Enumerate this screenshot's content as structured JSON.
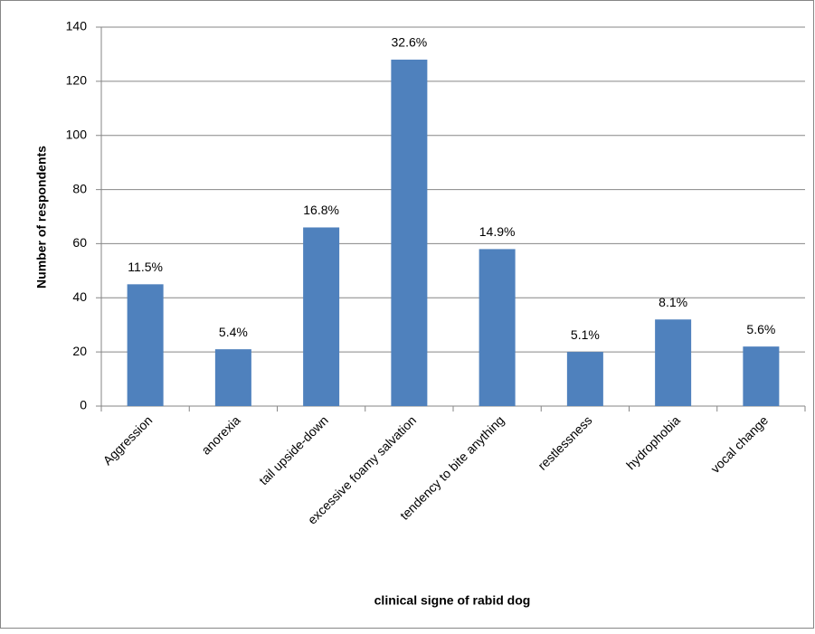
{
  "chart_data": {
    "type": "bar",
    "x_label": "clinical signe of rabid dog",
    "y_label": "Number  of respondents",
    "categories": [
      "Aggression",
      "anorexia",
      "tail upside-down",
      "excessive foamy salvation",
      "tendency to bite anything",
      "restlessness",
      "hydrophobia",
      "vocal change"
    ],
    "values": [
      45,
      21,
      66,
      128,
      58,
      20,
      32,
      22
    ],
    "percent_labels": [
      "11.5%",
      "5.4%",
      "16.8%",
      "32.6%",
      "14.9%",
      "5.1%",
      "8.1%",
      "5.6%"
    ],
    "color": "#4f81bd",
    "ylim": [
      0,
      140
    ],
    "yticks": [
      0,
      20,
      40,
      60,
      80,
      100,
      120,
      140
    ],
    "grid": true
  }
}
